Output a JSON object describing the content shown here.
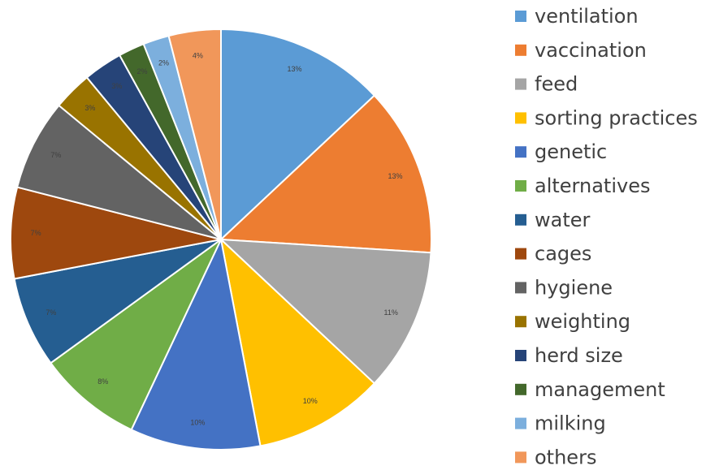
{
  "chart_data": {
    "type": "pie",
    "categories": [
      "ventilation",
      "vaccination",
      "feed",
      "sorting practices",
      "genetic",
      "alternatives",
      "water",
      "cages",
      "hygiene",
      "weighting",
      "herd size",
      "management",
      "milking",
      "others"
    ],
    "values": [
      13,
      13,
      11,
      10,
      10,
      8,
      7,
      7,
      7,
      3,
      3,
      2,
      2,
      4
    ],
    "value_labels": [
      "13%",
      "13%",
      "11%",
      "10%",
      "10%",
      "8%",
      "7%",
      "7%",
      "7%",
      "3%",
      "3%",
      "2%",
      "2%",
      "4%"
    ],
    "colors": [
      "#5b9bd5",
      "#ed7d31",
      "#a5a5a5",
      "#ffc000",
      "#4472c4",
      "#70ad47",
      "#255e91",
      "#9e480e",
      "#636363",
      "#997300",
      "#264478",
      "#43682b",
      "#7cafdd",
      "#f1975a"
    ],
    "legend": "right"
  }
}
